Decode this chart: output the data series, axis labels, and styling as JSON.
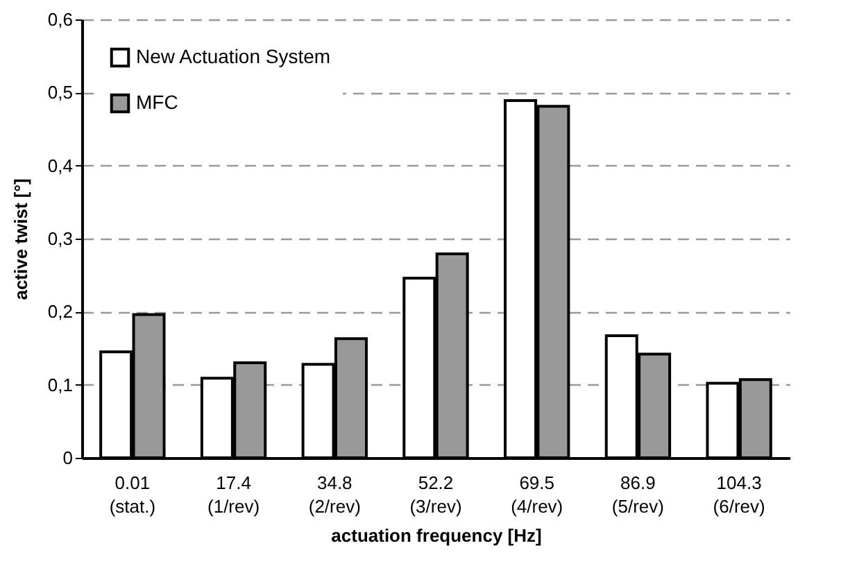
{
  "chart_data": {
    "type": "bar",
    "xlabel": "actuation frequency [Hz]",
    "ylabel": "active twist [°]",
    "categories": [
      "0.01\n(stat.)",
      "17.4\n(1/rev)",
      "34.8\n(2/rev)",
      "52.2\n(3/rev)",
      "69.5\n(4/rev)",
      "86.9\n(5/rev)",
      "104.3\n(6/rev)"
    ],
    "series": [
      {
        "name": "New Actuation System",
        "color": "#ffffff",
        "values": [
          0.145,
          0.109,
          0.128,
          0.246,
          0.489,
          0.167,
          0.102
        ]
      },
      {
        "name": "MFC",
        "color": "#999999",
        "values": [
          0.196,
          0.13,
          0.163,
          0.279,
          0.481,
          0.142,
          0.107
        ]
      }
    ],
    "ylim": [
      0,
      0.6
    ],
    "yticks": [
      0,
      {
        "value": 0.1,
        "label": "0,1"
      },
      {
        "value": 0.2,
        "label": "0,2"
      },
      {
        "value": 0.3,
        "label": "0,3"
      },
      {
        "value": 0.4,
        "label": "0,4"
      },
      {
        "value": 0.5,
        "label": "0,5"
      },
      {
        "value": 0.6,
        "label": "0,6"
      }
    ],
    "grid": "y",
    "legend": "top left"
  }
}
